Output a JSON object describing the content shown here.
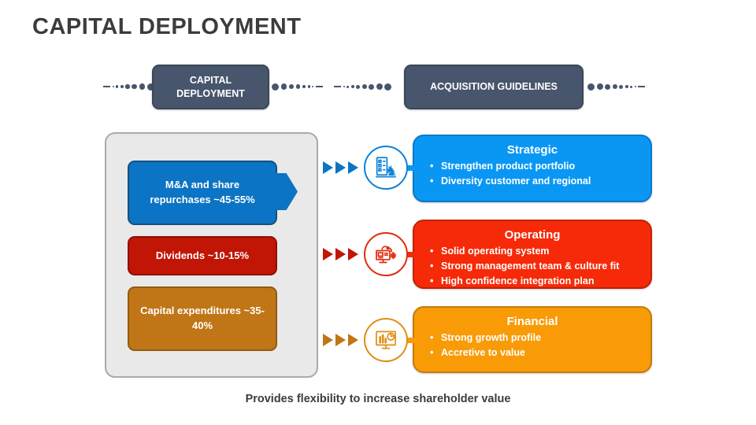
{
  "slide": {
    "title": "CAPITAL DEPLOYMENT",
    "footer": "Provides flexibility to increase shareholder value"
  },
  "headers": [
    {
      "label": "CAPITAL DEPLOYMENT"
    },
    {
      "label": "ACQUISITION GUIDELINES"
    }
  ],
  "capital_allocation": {
    "items": [
      {
        "label": "M&A and share repurchases ~45-55%",
        "color": "#0b74c4"
      },
      {
        "label": "Dividends ~10-15%",
        "color": "#c11505"
      },
      {
        "label": "Capital expenditures ~35-40%",
        "color": "#c07617"
      }
    ],
    "arrow_color": "#0b74c4"
  },
  "guidelines": [
    {
      "title": "Strategic",
      "bullets": [
        "Strengthen product portfolio",
        "Diversity customer and regional"
      ],
      "icon": "checklist-knight-icon",
      "colors": {
        "box": "#0a97f4",
        "border": "#0c79c8",
        "mid": "#0c82d8",
        "accent": "#0b74c4"
      }
    },
    {
      "title": "Operating",
      "bullets": [
        "Solid operating system",
        "Strong management team & culture fit",
        "High confidence integration plan"
      ],
      "icon": "computer-cloud-gear-icon",
      "colors": {
        "box": "#f62a08",
        "border": "#c32106",
        "mid": "#e22a0c",
        "accent": "#c11505"
      }
    },
    {
      "title": "Financial",
      "bullets": [
        "Strong growth profile",
        "Accretive to value"
      ],
      "icon": "monitor-charts-icon",
      "colors": {
        "box": "#f89b07",
        "border": "#c57b0b",
        "mid": "#e08e14",
        "accent": "#c07617"
      }
    }
  ],
  "theme": {
    "header_box_color": "#47566c",
    "dots_color": "#47566c",
    "panel_bg": "#e9e9e9",
    "title_color": "#3c3c3c"
  }
}
